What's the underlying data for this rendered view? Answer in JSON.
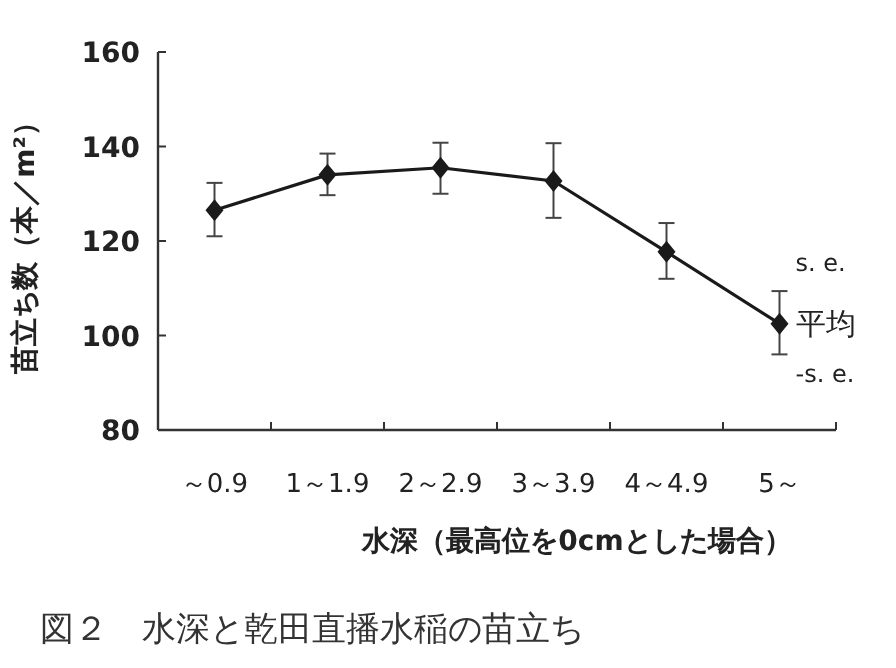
{
  "chart_data": {
    "type": "line",
    "title": "図２　水深と乾田直播水稲の苗立ち",
    "xlabel": "水深（最高位を0cmとした場合）",
    "ylabel": "苗立ち数（本／m²）",
    "categories": [
      "～0.9",
      "1～1.9",
      "2～2.9",
      "3～3.9",
      "4～4.9",
      "5～"
    ],
    "series": [
      {
        "color": "#1a1a1a",
        "values": [
          126.5,
          134,
          135.5,
          132.7,
          117.7,
          102.5
        ],
        "errors": [
          [
            121,
            132.3
          ],
          [
            129.7,
            138.5
          ],
          [
            130,
            140.8
          ],
          [
            124.9,
            140.7
          ],
          [
            112,
            123.8
          ],
          [
            96,
            109.4
          ]
        ]
      }
    ],
    "ylim": [
      80,
      160
    ],
    "yticks": [
      80,
      100,
      120,
      140,
      160
    ],
    "grid": false,
    "marker": "diamond",
    "line_style": "solid",
    "annotations": [
      {
        "text": "s. e.",
        "x": "5～",
        "y": 109.4
      },
      {
        "text": "平均",
        "x": "5～",
        "y": 102.5
      },
      {
        "text": "-s. e.",
        "x": "5～",
        "y": 96
      }
    ]
  }
}
